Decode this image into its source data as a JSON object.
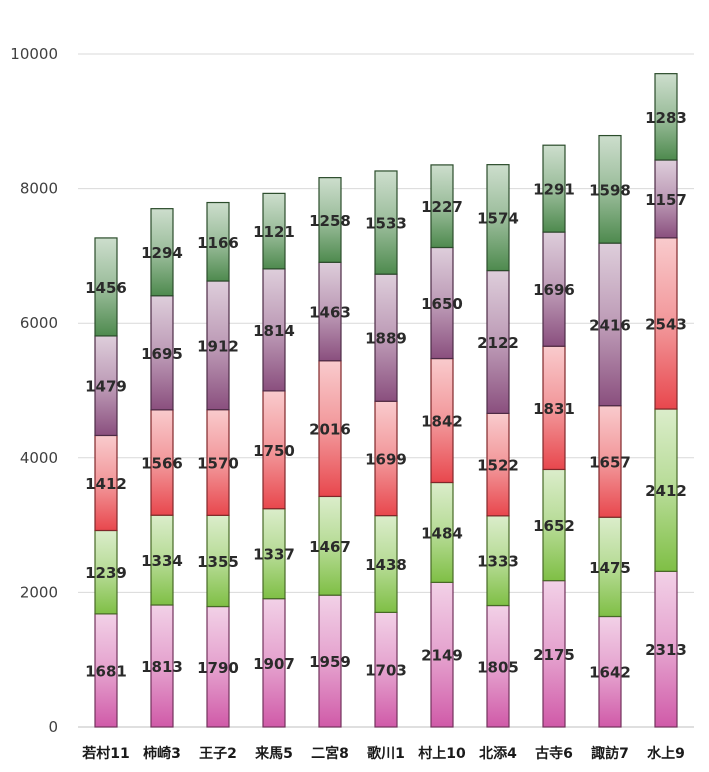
{
  "chart_data": {
    "type": "bar",
    "stacked": true,
    "title": "",
    "xlabel": "",
    "ylabel": "",
    "ylim": [
      0,
      10000
    ],
    "yticks": [
      0,
      2000,
      4000,
      6000,
      8000,
      10000
    ],
    "grid": true,
    "legend": "none",
    "categories": [
      "若村11",
      "柿崎3",
      "王子2",
      "来馬5",
      "二宮8",
      "歌川1",
      "村上10",
      "北添4",
      "古寺6",
      "諏訪7",
      "水上9"
    ],
    "series": [
      {
        "color": "#d05aa8",
        "values": [
          1681,
          1813,
          1790,
          1907,
          1959,
          1703,
          2149,
          1805,
          2175,
          1642,
          2313
        ]
      },
      {
        "color": "#7fbf45",
        "values": [
          1239,
          1334,
          1355,
          1337,
          1467,
          1438,
          1484,
          1333,
          1652,
          1475,
          2412
        ]
      },
      {
        "color": "#e8474d",
        "values": [
          1412,
          1566,
          1570,
          1750,
          2016,
          1699,
          1842,
          1522,
          1831,
          1657,
          2543
        ]
      },
      {
        "color": "#8a4f7e",
        "values": [
          1479,
          1695,
          1912,
          1814,
          1463,
          1889,
          1650,
          2122,
          1696,
          2416,
          1157
        ]
      },
      {
        "color": "#4e8a4e",
        "values": [
          1456,
          1294,
          1166,
          1121,
          1258,
          1533,
          1227,
          1574,
          1291,
          1598,
          1283
        ]
      }
    ]
  }
}
